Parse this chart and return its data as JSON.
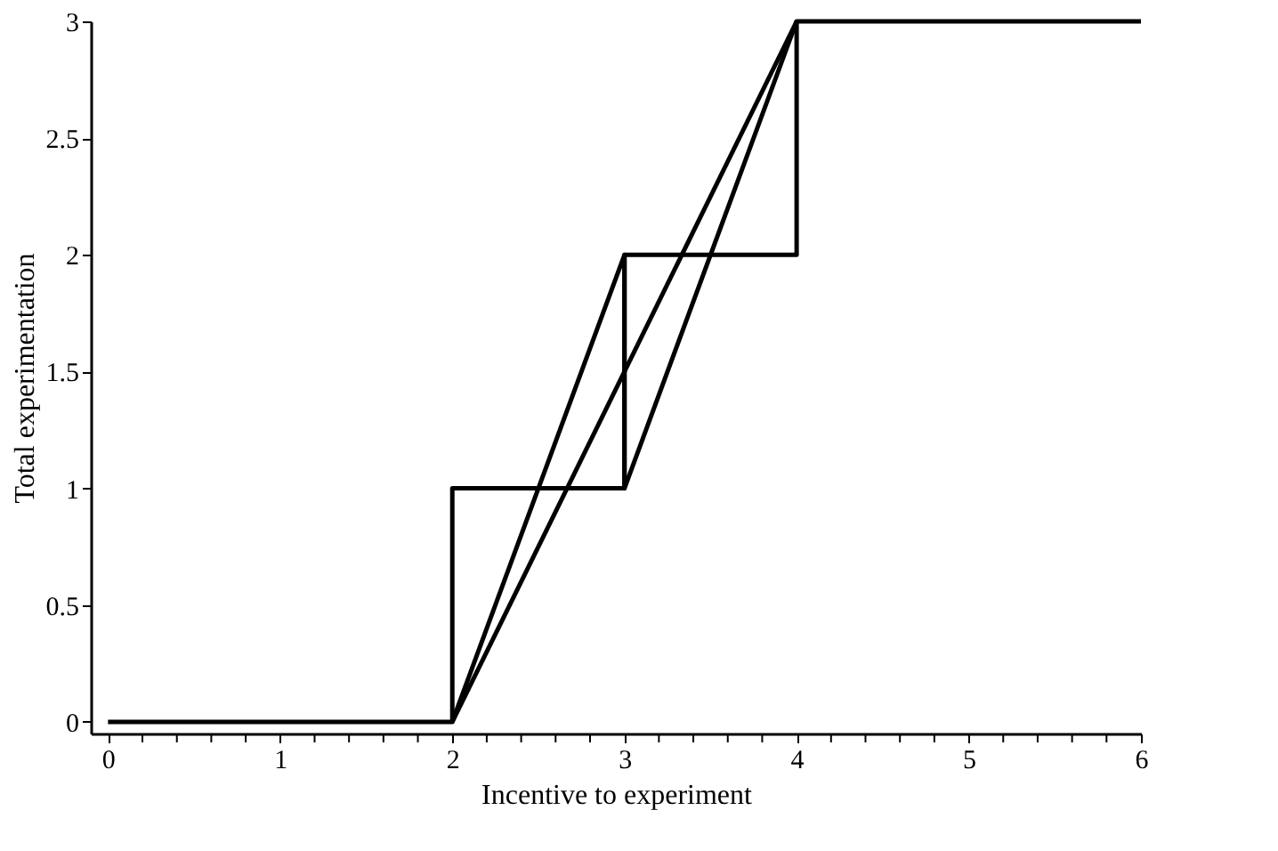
{
  "chart_data": {
    "type": "line",
    "xlabel": "Incentive to experiment",
    "ylabel": "Total experimentation",
    "series": [
      {
        "type": "step",
        "color": "#000000",
        "x": [
          0,
          2,
          3,
          4,
          6
        ],
        "values": [
          0,
          1,
          2,
          3,
          3
        ]
      },
      {
        "color": "#000000",
        "x": [
          2,
          4
        ],
        "values": [
          0,
          3
        ]
      },
      {
        "color": "#000000",
        "x": [
          2,
          3,
          3,
          4
        ],
        "values": [
          0,
          2,
          1,
          3
        ]
      }
    ],
    "xlim": [
      -0.1,
      6
    ],
    "ylim": [
      -0.05,
      3
    ],
    "xticks": [
      0,
      {
        "value": 0.2,
        "label": null
      },
      {
        "value": 0.4,
        "label": null
      },
      {
        "value": 0.6,
        "label": null
      },
      {
        "value": 0.8,
        "label": null
      },
      1,
      {
        "value": 1.2,
        "label": null
      },
      {
        "value": 1.4,
        "label": null
      },
      {
        "value": 1.6,
        "label": null
      },
      {
        "value": 1.8,
        "label": null
      },
      2,
      {
        "value": 2.2,
        "label": null
      },
      {
        "value": 2.4,
        "label": null
      },
      {
        "value": 2.6,
        "label": null
      },
      {
        "value": 2.8,
        "label": null
      },
      3,
      {
        "value": 3.2,
        "label": null
      },
      {
        "value": 3.4,
        "label": null
      },
      {
        "value": 3.6,
        "label": null
      },
      {
        "value": 3.8,
        "label": null
      },
      4,
      {
        "value": 4.2,
        "label": null
      },
      {
        "value": 4.4,
        "label": null
      },
      {
        "value": 4.6,
        "label": null
      },
      {
        "value": 4.8,
        "label": null
      },
      5,
      {
        "value": 5.2,
        "label": null
      },
      {
        "value": 5.4,
        "label": null
      },
      {
        "value": 5.6,
        "label": null
      },
      {
        "value": 5.8,
        "label": null
      },
      6
    ],
    "yticks": [
      0,
      0.5,
      1,
      1.5,
      2,
      2.5,
      3
    ],
    "grid": false
  }
}
